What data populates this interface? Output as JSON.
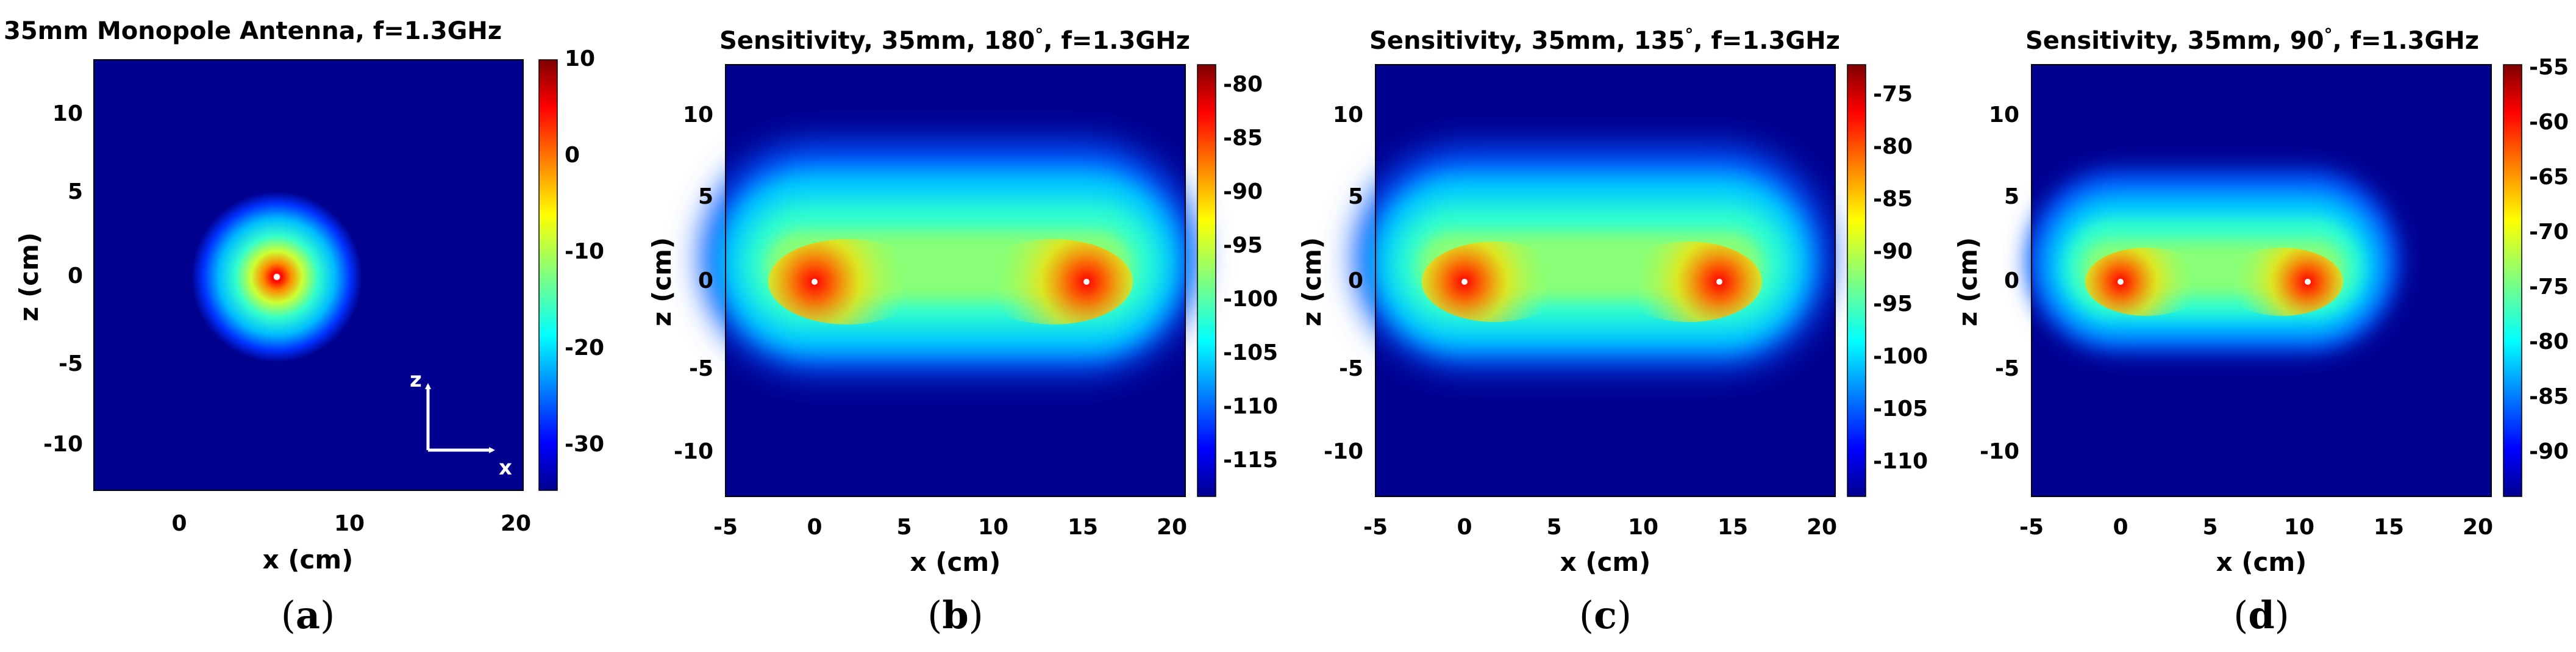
{
  "figure": {
    "panels": [
      {
        "label_parts": [
          "(",
          "a",
          ")"
        ],
        "title_parts": [
          "35mm Monopole Antenna, f=1.3GHz"
        ],
        "xlabel": "x (cm)",
        "ylabel": "z (cm)",
        "xticks": [
          "0",
          "10",
          "20"
        ],
        "yticks": [
          "10",
          "5",
          "0",
          "-5",
          "-10"
        ],
        "colorbar_ticks": [
          "10",
          "0",
          "-10",
          "-20",
          "-30"
        ],
        "axes_arrows": {
          "z": "z",
          "x": "x"
        }
      },
      {
        "label_parts": [
          "(",
          "b",
          ")"
        ],
        "title_parts": [
          "Sensitivity, 35mm, 180",
          "°",
          ", f=1.3GHz"
        ],
        "xlabel": "x (cm)",
        "ylabel": "z (cm)",
        "xticks": [
          "-5",
          "0",
          "5",
          "10",
          "15",
          "20"
        ],
        "yticks": [
          "10",
          "5",
          "0",
          "-5",
          "-10"
        ],
        "colorbar_ticks": [
          "-80",
          "-85",
          "-90",
          "-95",
          "-100",
          "-105",
          "-110",
          "-115"
        ]
      },
      {
        "label_parts": [
          "(",
          "c",
          ")"
        ],
        "title_parts": [
          "Sensitivity, 35mm, 135",
          "°",
          ", f=1.3GHz"
        ],
        "xlabel": "x (cm)",
        "ylabel": "z (cm)",
        "xticks": [
          "-5",
          "0",
          "5",
          "10",
          "15",
          "20"
        ],
        "yticks": [
          "10",
          "5",
          "0",
          "-5",
          "-10"
        ],
        "colorbar_ticks": [
          "-75",
          "-80",
          "-85",
          "-90",
          "-95",
          "-100",
          "-105",
          "-110"
        ]
      },
      {
        "label_parts": [
          "(",
          "d",
          ")"
        ],
        "title_parts": [
          "Sensitivity, 35mm, 90",
          "°",
          ", f=1.3GHz"
        ],
        "xlabel": "x (cm)",
        "ylabel": "z (cm)",
        "xticks": [
          "-5",
          "0",
          "5",
          "10",
          "15",
          "20"
        ],
        "yticks": [
          "10",
          "5",
          "0",
          "-5",
          "-10"
        ],
        "colorbar_ticks": [
          "-55",
          "-60",
          "-65",
          "-70",
          "-75",
          "-80",
          "-85",
          "-90"
        ]
      }
    ]
  },
  "chart_data": [
    {
      "type": "heatmap",
      "title": "35mm Monopole Antenna, f=1.3GHz",
      "xlabel": "x (cm)",
      "ylabel": "z (cm)",
      "xlim": [
        -5,
        20
      ],
      "ylim": [
        -12.5,
        12.5
      ],
      "xticks": [
        0,
        10,
        20
      ],
      "yticks": [
        10,
        5,
        0,
        -5,
        -10
      ],
      "clim": [
        -35,
        10
      ],
      "colorbar_ticks": [
        10,
        0,
        -10,
        -20,
        -30
      ],
      "colormap": "jet",
      "features": [
        {
          "kind": "point_source",
          "x": 5.8,
          "z": 0
        }
      ],
      "annotation": "z / x axis orientation arrows"
    },
    {
      "type": "heatmap",
      "title": "Sensitivity, 35mm, 180°, f=1.3GHz",
      "xlabel": "x (cm)",
      "ylabel": "z (cm)",
      "xlim": [
        -5,
        20
      ],
      "ylim": [
        -12.5,
        12.5
      ],
      "xticks": [
        -5,
        0,
        5,
        10,
        15,
        20
      ],
      "yticks": [
        10,
        5,
        0,
        -5,
        -10
      ],
      "clim": [
        -118,
        -78
      ],
      "colorbar_ticks": [
        -80,
        -85,
        -90,
        -95,
        -100,
        -105,
        -110,
        -115
      ],
      "colormap": "jet",
      "features": [
        {
          "kind": "antenna",
          "x": 0,
          "z": 0
        },
        {
          "kind": "antenna",
          "x": 15.2,
          "z": 0
        }
      ]
    },
    {
      "type": "heatmap",
      "title": "Sensitivity, 35mm, 135°, f=1.3GHz",
      "xlabel": "x (cm)",
      "ylabel": "z (cm)",
      "xlim": [
        -5,
        20
      ],
      "ylim": [
        -12.5,
        12.5
      ],
      "xticks": [
        -5,
        0,
        5,
        10,
        15,
        20
      ],
      "yticks": [
        10,
        5,
        0,
        -5,
        -10
      ],
      "clim": [
        -113,
        -72
      ],
      "colorbar_ticks": [
        -75,
        -80,
        -85,
        -90,
        -95,
        -100,
        -105,
        -110
      ],
      "colormap": "jet",
      "features": [
        {
          "kind": "antenna",
          "x": 0,
          "z": 0
        },
        {
          "kind": "antenna",
          "x": 14.2,
          "z": 0
        }
      ]
    },
    {
      "type": "heatmap",
      "title": "Sensitivity, 35mm, 90°, f=1.3GHz",
      "xlabel": "x (cm)",
      "ylabel": "z (cm)",
      "xlim": [
        -5,
        20
      ],
      "ylim": [
        -12.5,
        12.5
      ],
      "xticks": [
        -5,
        0,
        5,
        10,
        15,
        20
      ],
      "yticks": [
        10,
        5,
        0,
        -5,
        -10
      ],
      "clim": [
        -93,
        -53
      ],
      "colorbar_ticks": [
        -55,
        -60,
        -65,
        -70,
        -75,
        -80,
        -85,
        -90
      ],
      "colormap": "jet",
      "features": [
        {
          "kind": "antenna",
          "x": 0,
          "z": 0
        },
        {
          "kind": "antenna",
          "x": 10.8,
          "z": 0
        }
      ]
    }
  ]
}
